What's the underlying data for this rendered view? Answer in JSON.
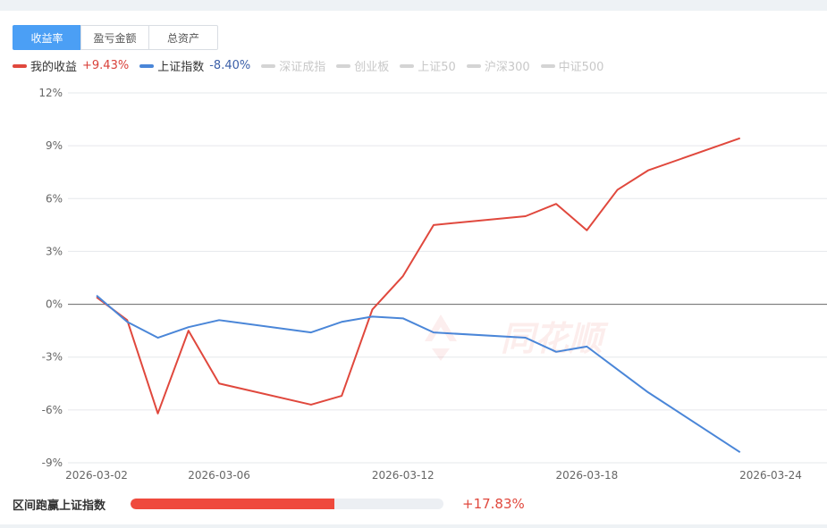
{
  "tabs": [
    {
      "label": "收益率",
      "active": true
    },
    {
      "label": "盈亏金额",
      "active": false
    },
    {
      "label": "总资产",
      "active": false
    }
  ],
  "legend": [
    {
      "name": "我的收益",
      "value": "+9.43%",
      "color": "#e0483d",
      "value_color": "#d9413a",
      "active": true
    },
    {
      "name": "上证指数",
      "value": "-8.40%",
      "color": "#4a86d8",
      "value_color": "#3b5fa8",
      "active": true
    },
    {
      "name": "深证成指",
      "active": false
    },
    {
      "name": "创业板",
      "active": false
    },
    {
      "name": "上证50",
      "active": false
    },
    {
      "name": "沪深300",
      "active": false
    },
    {
      "name": "中证500",
      "active": false
    }
  ],
  "watermark": "同花顺",
  "chart_data": {
    "type": "line",
    "y_unit": "%",
    "ylim": [
      -9,
      12
    ],
    "yticks": [
      12,
      9,
      6,
      3,
      0,
      -3,
      -6,
      -9
    ],
    "ytick_labels": [
      "12%",
      "9%",
      "6%",
      "3%",
      "0%",
      "-3%",
      "-6%",
      "-9%"
    ],
    "xlim": [
      "2026-03-02",
      "2026-03-24"
    ],
    "xtick_labels": [
      "2026-03-02",
      "2026-03-06",
      "2026-03-12",
      "2026-03-18",
      "2026-03-24"
    ],
    "grid": true,
    "legend_position": "top-left",
    "x": [
      "2026-03-02",
      "2026-03-03",
      "2026-03-04",
      "2026-03-05",
      "2026-03-06",
      "2026-03-09",
      "2026-03-10",
      "2026-03-11",
      "2026-03-12",
      "2026-03-13",
      "2026-03-16",
      "2026-03-17",
      "2026-03-18",
      "2026-03-19",
      "2026-03-20",
      "2026-03-23"
    ],
    "series": [
      {
        "name": "我的收益",
        "color": "#e0483d",
        "values": [
          0.4,
          -0.9,
          -6.2,
          -1.5,
          -4.5,
          -5.7,
          -5.2,
          -0.3,
          1.6,
          4.5,
          5.0,
          5.7,
          4.2,
          6.5,
          7.6,
          9.43
        ]
      },
      {
        "name": "上证指数",
        "color": "#4a86d8",
        "values": [
          0.5,
          -1.0,
          -1.9,
          -1.3,
          -0.9,
          -1.6,
          -1.0,
          -0.7,
          -0.8,
          -1.6,
          -1.9,
          -2.7,
          -2.4,
          -3.7,
          -5.0,
          -8.4
        ]
      }
    ]
  },
  "footer": {
    "label": "区间跑赢上证指数",
    "value": "+17.83%",
    "value_color": "#e0483d",
    "bar_color": "#ef4a3d",
    "bar_fraction": 0.65
  }
}
